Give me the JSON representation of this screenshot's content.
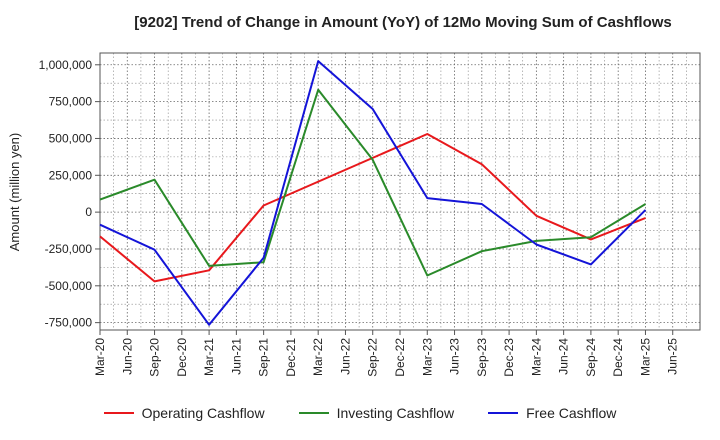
{
  "chart_data": {
    "type": "line",
    "title": "[9202]  Trend of Change in Amount (YoY) of 12Mo Moving Sum of Cashflows",
    "xlabel": "",
    "ylabel": "Amount (million yen)",
    "ylim": [
      -800000,
      1080000
    ],
    "yticks": [
      1000000,
      750000,
      500000,
      250000,
      0,
      -250000,
      -500000,
      -750000
    ],
    "ytick_labels": [
      "1,000,000",
      "750,000",
      "500,000",
      "250,000",
      "0",
      "-250,000",
      "-500,000",
      "-750,000"
    ],
    "categories": [
      "Mar-20",
      "Jun-20",
      "Sep-20",
      "Dec-20",
      "Mar-21",
      "Jun-21",
      "Sep-21",
      "Dec-21",
      "Mar-22",
      "Jun-22",
      "Sep-22",
      "Dec-22",
      "Mar-23",
      "Jun-23",
      "Sep-23",
      "Dec-23",
      "Mar-24",
      "Jun-24",
      "Sep-24",
      "Dec-24",
      "Mar-25",
      "Jun-25"
    ],
    "series": [
      {
        "name": "Operating Cashflow",
        "color": "#e8181c",
        "points": [
          [
            0,
            -165000
          ],
          [
            2,
            -470000
          ],
          [
            4,
            -395000
          ],
          [
            6,
            45000
          ],
          [
            12,
            530000
          ],
          [
            14,
            325000
          ],
          [
            16,
            -25000
          ],
          [
            18,
            -185000
          ],
          [
            20,
            -40000
          ]
        ]
      },
      {
        "name": "Investing Cashflow",
        "color": "#2a8a2a",
        "points": [
          [
            0,
            85000
          ],
          [
            2,
            220000
          ],
          [
            4,
            -365000
          ],
          [
            6,
            -340000
          ],
          [
            8,
            830000
          ],
          [
            10,
            355000
          ],
          [
            12,
            -430000
          ],
          [
            14,
            -265000
          ],
          [
            16,
            -195000
          ],
          [
            18,
            -170000
          ],
          [
            20,
            55000
          ]
        ]
      },
      {
        "name": "Free Cashflow",
        "color": "#1414d8",
        "points": [
          [
            0,
            -85000
          ],
          [
            2,
            -255000
          ],
          [
            4,
            -765000
          ],
          [
            6,
            -310000
          ],
          [
            8,
            1025000
          ],
          [
            10,
            700000
          ],
          [
            12,
            95000
          ],
          [
            14,
            55000
          ],
          [
            16,
            -220000
          ],
          [
            18,
            -355000
          ],
          [
            20,
            15000
          ]
        ]
      }
    ]
  }
}
